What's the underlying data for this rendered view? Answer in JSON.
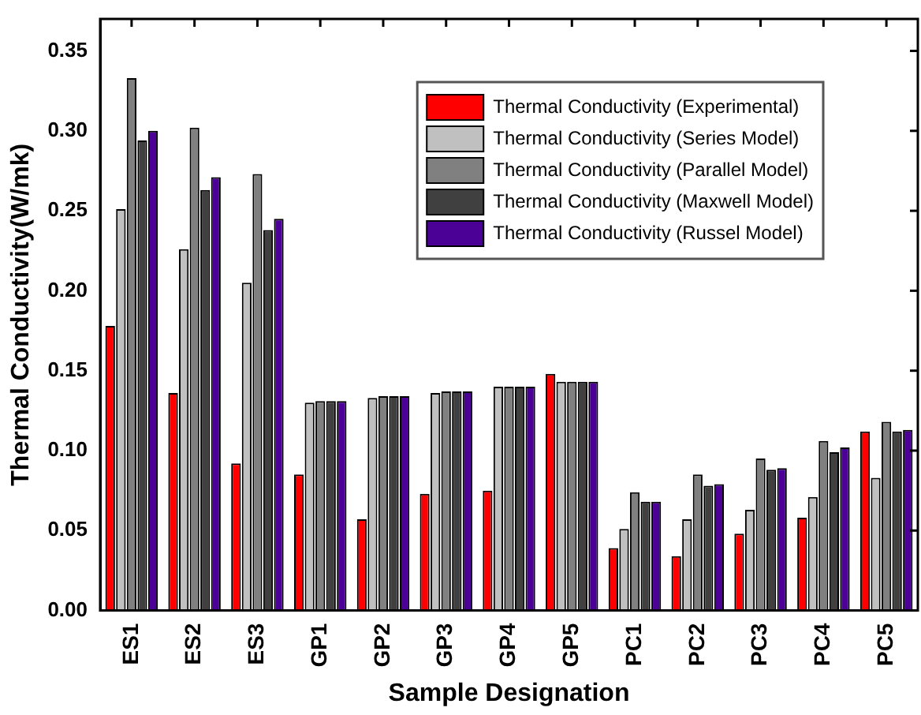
{
  "chart_data": {
    "type": "bar",
    "xlabel": "Sample Designation",
    "ylabel": "Thermal Conductivity(W/mk)",
    "categories": [
      "ES1",
      "ES2",
      "ES3",
      "GP1",
      "GP2",
      "GP3",
      "GP4",
      "GP5",
      "PC1",
      "PC2",
      "PC3",
      "PC4",
      "PC5"
    ],
    "series": [
      {
        "name": "Thermal Conductivity (Experimental)",
        "color": "#ff0000",
        "values": [
          0.178,
          0.136,
          0.092,
          0.085,
          0.057,
          0.073,
          0.075,
          0.148,
          0.039,
          0.034,
          0.048,
          0.058,
          0.112
        ]
      },
      {
        "name": "Thermal Conductivity (Series Model)",
        "color": "#c0c0c0",
        "values": [
          0.251,
          0.226,
          0.205,
          0.13,
          0.133,
          0.136,
          0.14,
          0.143,
          0.051,
          0.057,
          0.063,
          0.071,
          0.083
        ]
      },
      {
        "name": "Thermal Conductivity (Parallel Model)",
        "color": "#808080",
        "values": [
          0.333,
          0.302,
          0.273,
          0.131,
          0.134,
          0.137,
          0.14,
          0.143,
          0.074,
          0.085,
          0.095,
          0.106,
          0.118
        ]
      },
      {
        "name": "Thermal Conductivity (Maxwell Model)",
        "color": "#404040",
        "values": [
          0.294,
          0.263,
          0.238,
          0.131,
          0.134,
          0.137,
          0.14,
          0.143,
          0.068,
          0.078,
          0.088,
          0.099,
          0.112
        ]
      },
      {
        "name": "Thermal Conductivity (Russel Model)",
        "color": "#4b0096",
        "values": [
          0.3,
          0.271,
          0.245,
          0.131,
          0.134,
          0.137,
          0.14,
          0.143,
          0.068,
          0.079,
          0.089,
          0.102,
          0.113
        ]
      }
    ],
    "ylim": [
      0,
      0.37
    ],
    "yticks": [
      {
        "value": 0,
        "label": "0.00"
      },
      {
        "value": 0.05,
        "label": "0.05"
      },
      {
        "value": 0.1,
        "label": "0.10"
      },
      {
        "value": 0.15,
        "label": "0.15"
      },
      {
        "value": 0.2,
        "label": "0.20"
      },
      {
        "value": 0.25,
        "label": "0.25"
      },
      {
        "value": 0.3,
        "label": "0.30"
      },
      {
        "value": 0.35,
        "label": "0.35"
      }
    ],
    "grid": false,
    "legend": "top right"
  }
}
